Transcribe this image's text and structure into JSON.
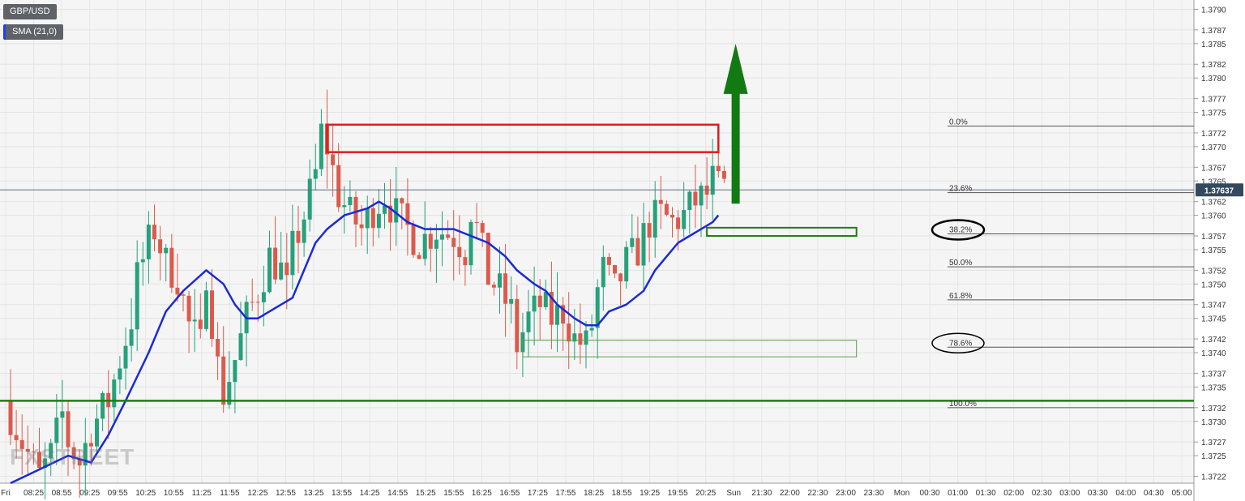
{
  "legend": {
    "symbol": "GBP/USD",
    "indicator": "SMA (21,0)"
  },
  "watermark": "FXSTREET",
  "colors": {
    "bull": "#26a17b",
    "bear": "#dc5a4b",
    "sma": "#1a2ad6",
    "support": "#1e7d12",
    "resistance_box": "#e21b1b",
    "arrow": "#127a12",
    "price_tag": "#34495e"
  },
  "chart_data": {
    "type": "candlestick",
    "symbol": "GBP/USD",
    "timeframe_minutes": 5,
    "ylim": [
      1.3721,
      1.3791
    ],
    "y_ticks": [
      "1.3790",
      "1.3787",
      "1.3785",
      "1.3782",
      "1.3780",
      "1.3777",
      "1.3775",
      "1.3772",
      "1.3770",
      "1.3767",
      "1.3765",
      "1.3762",
      "1.3760",
      "1.3757",
      "1.3755",
      "1.3752",
      "1.3750",
      "1.3747",
      "1.3745",
      "1.3742",
      "1.3740",
      "1.3737",
      "1.3735",
      "1.3732",
      "1.3730",
      "1.3727",
      "1.3725",
      "1.3722"
    ],
    "x_ticks": [
      "Fri",
      "08:25",
      "08:55",
      "09:25",
      "09:55",
      "10:25",
      "10:55",
      "11:25",
      "11:55",
      "12:25",
      "12:55",
      "13:25",
      "13:55",
      "14:25",
      "14:55",
      "15:25",
      "15:55",
      "16:25",
      "16:55",
      "17:25",
      "17:55",
      "18:25",
      "18:55",
      "19:25",
      "19:55",
      "20:25",
      "Sun",
      "21:30",
      "22:00",
      "22:30",
      "23:00",
      "23:30",
      "Mon",
      "00:30",
      "01:00",
      "01:30",
      "02:00",
      "02:30",
      "03:00",
      "03:30",
      "04:00",
      "04:30",
      "05:00"
    ],
    "current_price": "1.37637",
    "session_path": [
      [
        0,
        1.3733
      ],
      [
        3,
        1.3727
      ],
      [
        6,
        1.3722
      ],
      [
        8,
        1.3725
      ],
      [
        10,
        1.3731
      ],
      [
        11,
        1.3727
      ],
      [
        13,
        1.3724
      ],
      [
        15,
        1.3729
      ],
      [
        18,
        1.3733
      ],
      [
        20,
        1.3739
      ],
      [
        22,
        1.3745
      ],
      [
        23,
        1.3751
      ],
      [
        25,
        1.3756
      ],
      [
        26,
        1.3758
      ],
      [
        28,
        1.3753
      ],
      [
        30,
        1.3751
      ],
      [
        32,
        1.3744
      ],
      [
        34,
        1.3741
      ],
      [
        35,
        1.3752
      ],
      [
        37,
        1.3738
      ],
      [
        38,
        1.3734
      ],
      [
        40,
        1.3739
      ],
      [
        42,
        1.3745
      ],
      [
        44,
        1.3749
      ],
      [
        46,
        1.3754
      ],
      [
        48,
        1.3752
      ],
      [
        49,
        1.3749
      ],
      [
        50,
        1.3755
      ],
      [
        52,
        1.376
      ],
      [
        54,
        1.3766
      ],
      [
        55,
        1.3772
      ],
      [
        56,
        1.377
      ],
      [
        58,
        1.3763
      ],
      [
        60,
        1.376
      ],
      [
        62,
        1.3758
      ],
      [
        64,
        1.3761
      ],
      [
        66,
        1.3763
      ],
      [
        68,
        1.376
      ],
      [
        70,
        1.3758
      ],
      [
        72,
        1.3756
      ],
      [
        75,
        1.3758
      ],
      [
        78,
        1.3757
      ],
      [
        80,
        1.3755
      ],
      [
        81,
        1.3761
      ],
      [
        82,
        1.3758
      ],
      [
        84,
        1.3751
      ],
      [
        86,
        1.3749
      ],
      [
        88,
        1.3746
      ],
      [
        89,
        1.3741
      ],
      [
        91,
        1.3745
      ],
      [
        93,
        1.3747
      ],
      [
        95,
        1.3745
      ],
      [
        97,
        1.3746
      ],
      [
        99,
        1.3742
      ],
      [
        101,
        1.3741
      ],
      [
        102,
        1.3744
      ],
      [
        103,
        1.3749
      ],
      [
        104,
        1.3752
      ],
      [
        106,
        1.3749
      ],
      [
        108,
        1.3753
      ],
      [
        110,
        1.3755
      ],
      [
        112,
        1.3759
      ],
      [
        114,
        1.376
      ],
      [
        116,
        1.3759
      ],
      [
        118,
        1.376
      ],
      [
        120,
        1.3762
      ],
      [
        122,
        1.3763
      ],
      [
        123,
        1.3765
      ],
      [
        124,
        1.3764
      ]
    ],
    "sma_path": [
      [
        0,
        1.3721
      ],
      [
        5,
        1.3723
      ],
      [
        10,
        1.3725
      ],
      [
        14,
        1.3724
      ],
      [
        17,
        1.3728
      ],
      [
        20,
        1.3733
      ],
      [
        24,
        1.374
      ],
      [
        27,
        1.3746
      ],
      [
        30,
        1.3749
      ],
      [
        34,
        1.3752
      ],
      [
        37,
        1.375
      ],
      [
        39,
        1.3747
      ],
      [
        41,
        1.3745
      ],
      [
        43,
        1.3745
      ],
      [
        45,
        1.3746
      ],
      [
        49,
        1.3748
      ],
      [
        51,
        1.3752
      ],
      [
        53,
        1.3756
      ],
      [
        55,
        1.3758
      ],
      [
        58,
        1.376
      ],
      [
        62,
        1.3761
      ],
      [
        64,
        1.3762
      ],
      [
        66,
        1.3761
      ],
      [
        69,
        1.3759
      ],
      [
        72,
        1.3758
      ],
      [
        74,
        1.3758
      ],
      [
        77,
        1.3758
      ],
      [
        80,
        1.3757
      ],
      [
        83,
        1.3756
      ],
      [
        86,
        1.3754
      ],
      [
        88,
        1.3752
      ],
      [
        91,
        1.375
      ],
      [
        93,
        1.3749
      ],
      [
        95,
        1.3747
      ],
      [
        98,
        1.3745
      ],
      [
        100,
        1.3744
      ],
      [
        102,
        1.3744
      ],
      [
        104,
        1.3746
      ],
      [
        107,
        1.3747
      ],
      [
        110,
        1.3749
      ],
      [
        112,
        1.3752
      ],
      [
        114,
        1.3754
      ],
      [
        116,
        1.3756
      ],
      [
        118,
        1.3757
      ],
      [
        120,
        1.3758
      ],
      [
        122,
        1.3759
      ],
      [
        123,
        1.376
      ]
    ],
    "horizontal_levels": [
      {
        "name": "support",
        "price": 1.3733
      },
      {
        "name": "current-price",
        "price": 1.37637
      }
    ],
    "fibonacci": {
      "high": 1.3773,
      "low": 1.3732,
      "levels": [
        {
          "label": "0.0%",
          "price": 1.3773
        },
        {
          "label": "23.6%",
          "price": 1.37633
        },
        {
          "label": "38.2%",
          "price": 1.37573
        },
        {
          "label": "50.0%",
          "price": 1.37525
        },
        {
          "label": "61.8%",
          "price": 1.37477
        },
        {
          "label": "78.6%",
          "price": 1.37408
        },
        {
          "label": "100.0%",
          "price": 1.3732
        }
      ],
      "circled": [
        "38.2%",
        "78.6%"
      ]
    },
    "zones": [
      {
        "name": "resistance",
        "from_index": 55,
        "to_index": 123,
        "y_low": 1.37692,
        "y_high": 1.37732
      },
      {
        "name": "fib-38-zone",
        "from_index": 121,
        "to_index": 147,
        "y_low": 1.3757,
        "y_high": 1.37582
      },
      {
        "name": "fib-78-zone",
        "from_index": 89,
        "to_index": 147,
        "y_low": 1.37394,
        "y_high": 1.37418
      }
    ],
    "arrow": {
      "direction": "up",
      "index": 126,
      "from": 1.37617,
      "to": 1.3785
    }
  }
}
